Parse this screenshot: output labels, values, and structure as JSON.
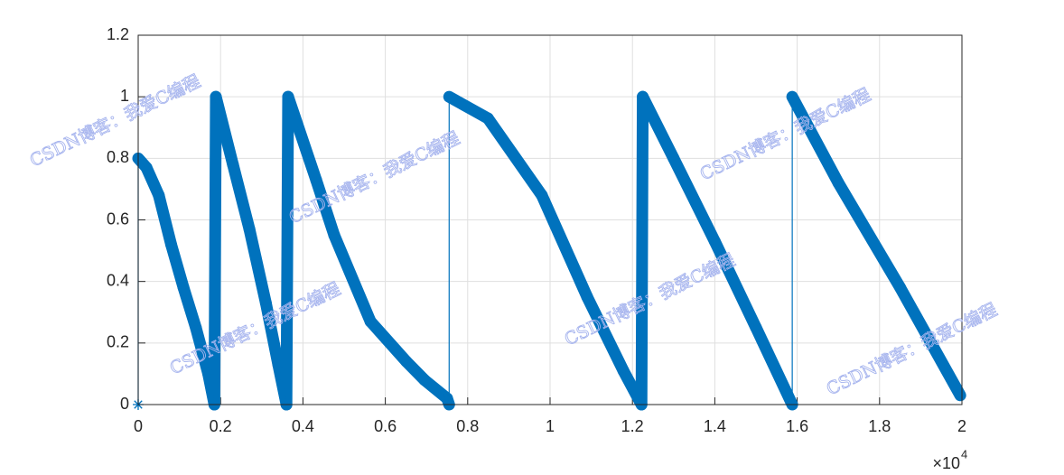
{
  "chart_data": {
    "type": "line",
    "x": [
      0,
      0,
      200,
      500,
      800,
      1100,
      1400,
      1700,
      1850,
      1886,
      2300,
      2700,
      3100,
      3400,
      3600,
      3640,
      4320,
      4760,
      5640,
      6510,
      6950,
      7500,
      7550,
      7550,
      8490,
      9800,
      10900,
      11780,
      12220,
      12250,
      13000,
      14000,
      15000,
      15880,
      15880,
      17000,
      18500,
      19960
    ],
    "series": [
      {
        "color": "#0072bd",
        "values": [
          0,
          0.8,
          0.77,
          0.68,
          0.52,
          0.38,
          0.25,
          0.1,
          0,
          1,
          0.78,
          0.57,
          0.33,
          0.13,
          0,
          1,
          0.73,
          0.55,
          0.27,
          0.14,
          0.08,
          0.02,
          0,
          1,
          0.93,
          0.68,
          0.35,
          0.11,
          0,
          1,
          0.8,
          0.53,
          0.25,
          0,
          1,
          0.72,
          0.38,
          0.03
        ]
      }
    ],
    "xlim": [
      0,
      20000
    ],
    "xticks": [
      {
        "value": 0,
        "label": "0"
      },
      {
        "value": 2000,
        "label": "0.2"
      },
      {
        "value": 4000,
        "label": "0.4"
      },
      {
        "value": 6000,
        "label": "0.6"
      },
      {
        "value": 8000,
        "label": "0.8"
      },
      {
        "value": 10000,
        "label": "1"
      },
      {
        "value": 12000,
        "label": "1.2"
      },
      {
        "value": 14000,
        "label": "1.4"
      },
      {
        "value": 16000,
        "label": "1.6"
      },
      {
        "value": 18000,
        "label": "1.8"
      },
      {
        "value": 20000,
        "label": "2"
      }
    ],
    "x_multiplier": {
      "base": "×10",
      "exponent": "4"
    },
    "ylim": [
      0,
      1.2
    ],
    "yticks": [
      0,
      0.2,
      0.4,
      0.6,
      0.8,
      1,
      1.2
    ],
    "grid": true,
    "marker": "asterisk"
  },
  "watermarks": [
    "CSDN博客：我爱C编程",
    "CSDN博客：我爱C编程",
    "CSDN博客：我爱C编程",
    "CSDN博客：我爱C编程",
    "CSDN博客：我爱C编程",
    "CSDN博客：我爱C编程"
  ]
}
